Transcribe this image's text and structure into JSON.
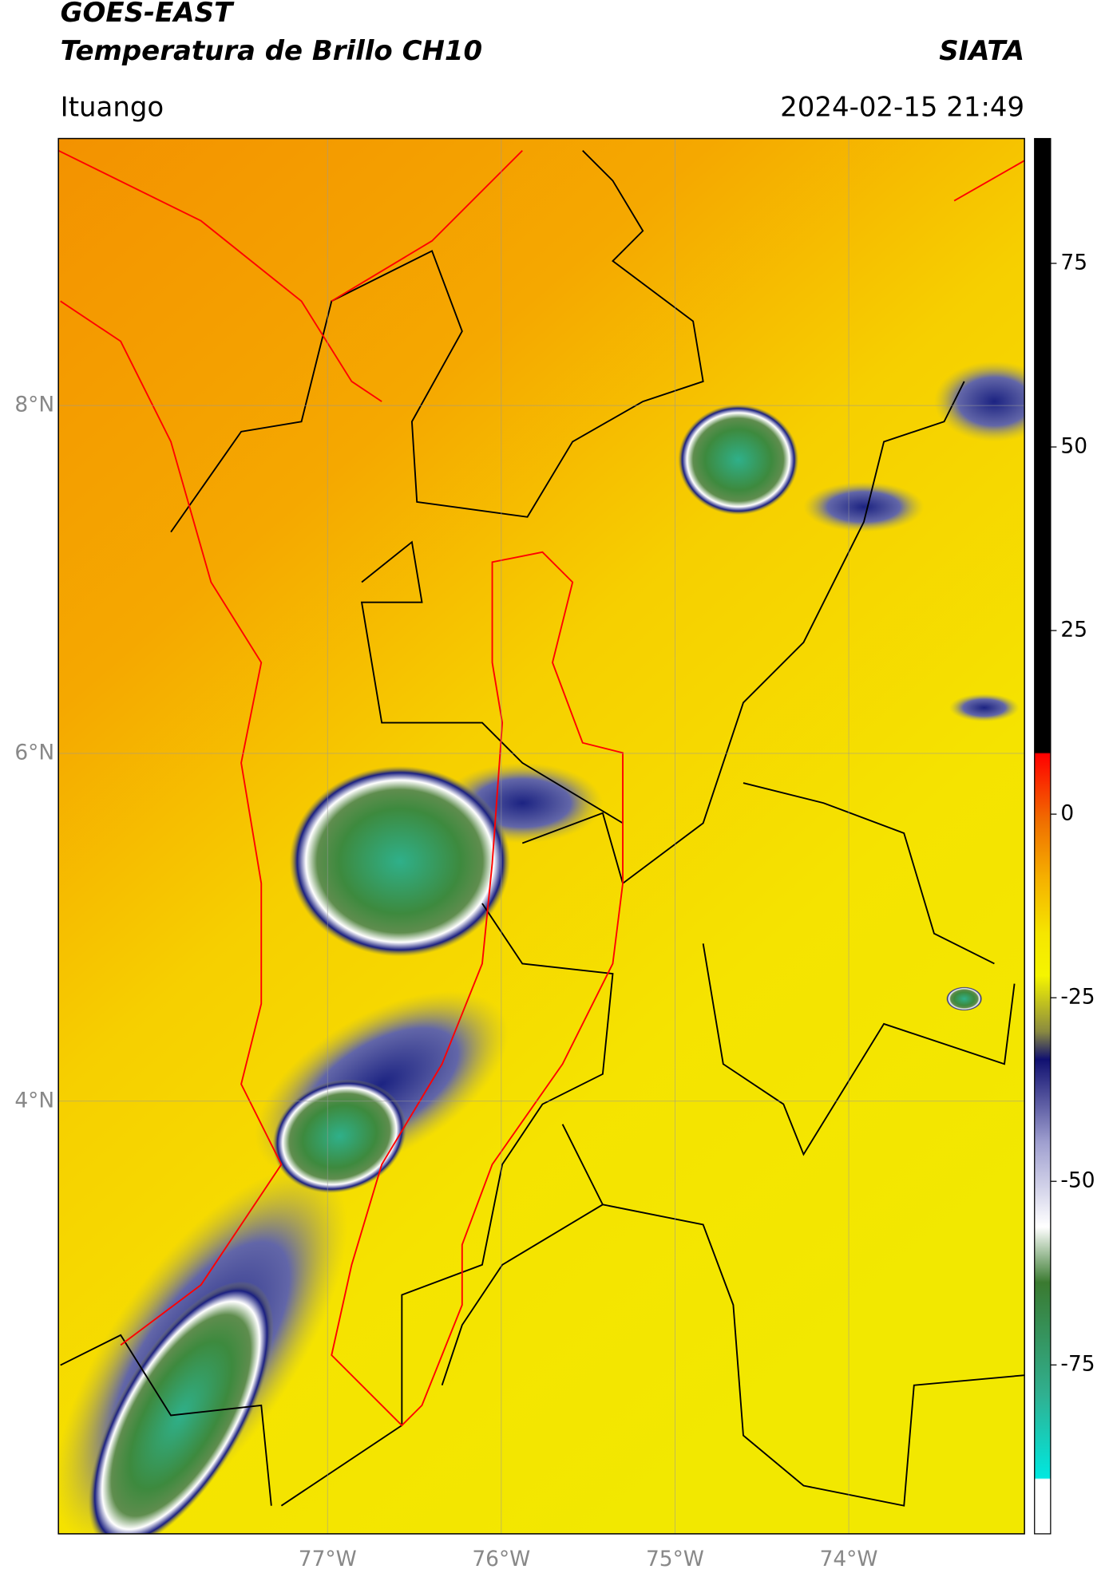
{
  "header": {
    "title": "GOES-EAST",
    "subtitle": "Temperatura de Brillo CH10",
    "source": "SIATA",
    "location": "Ituango",
    "datetime": "2024-02-15 21:49"
  },
  "map": {
    "lat_ticks": [
      {
        "value": 8,
        "label": "8°N"
      },
      {
        "value": 6,
        "label": "6°N"
      },
      {
        "value": 4,
        "label": "4°N"
      }
    ],
    "lon_ticks": [
      {
        "value": -77,
        "label": "77°W"
      },
      {
        "value": -76,
        "label": "76°W"
      },
      {
        "value": -75,
        "label": "75°W"
      },
      {
        "value": -74,
        "label": "74°W"
      }
    ]
  },
  "colorbar": {
    "lim": [
      -98,
      92
    ],
    "ticks": [
      75,
      50,
      25,
      0,
      -25,
      -50,
      -75
    ]
  }
}
